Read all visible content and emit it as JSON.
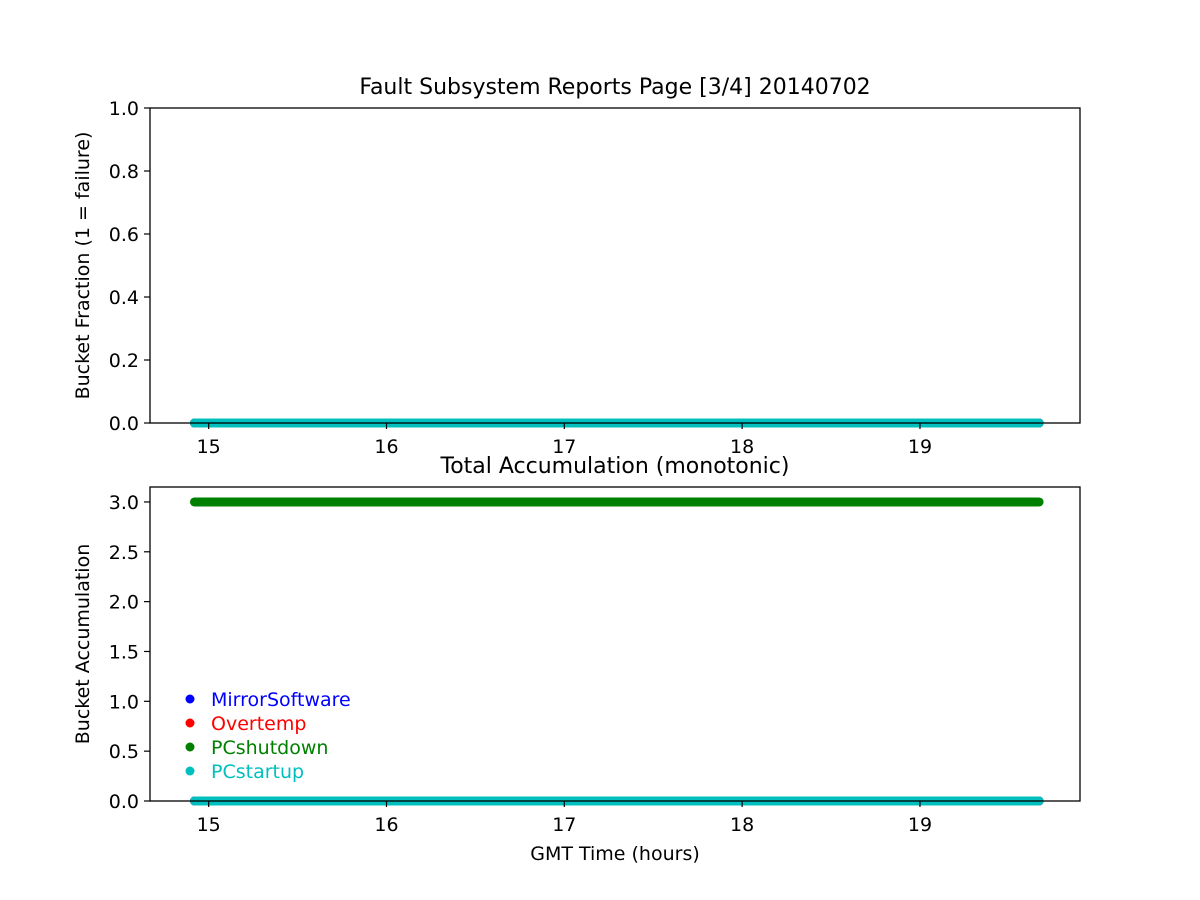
{
  "chart_data": [
    {
      "type": "scatter",
      "title": "Fault Subsystem Reports Page [3/4] 20140702",
      "xlabel": "",
      "ylabel": "Bucket Fraction (1 = failure)",
      "xlim": [
        14.67,
        19.9
      ],
      "ylim": [
        0,
        1
      ],
      "xticks": [
        15,
        16,
        17,
        18,
        19
      ],
      "xtick_labels": [
        "15",
        "16",
        "17",
        "18",
        "19"
      ],
      "yticks": [
        0,
        0.2,
        0.4,
        0.6,
        0.8,
        1.0
      ],
      "ytick_labels": [
        "0.0",
        "0.2",
        "0.4",
        "0.6",
        "0.8",
        "1.0"
      ],
      "x_range": [
        14.92,
        19.67
      ],
      "grid": false,
      "series": [
        {
          "name": "MirrorSoftware",
          "color": "#0000ff",
          "y": 0
        },
        {
          "name": "Overtemp",
          "color": "#ff0000",
          "y": 0
        },
        {
          "name": "PCshutdown",
          "color": "#008000",
          "y": 0
        },
        {
          "name": "PCstartup",
          "color": "#00bfbf",
          "y": 0
        }
      ]
    },
    {
      "type": "scatter",
      "title": "Total Accumulation (monotonic)",
      "xlabel": "GMT Time (hours)",
      "ylabel": "Bucket Accumulation",
      "xlim": [
        14.67,
        19.9
      ],
      "ylim": [
        0,
        3.15
      ],
      "xticks": [
        15,
        16,
        17,
        18,
        19
      ],
      "xtick_labels": [
        "15",
        "16",
        "17",
        "18",
        "19"
      ],
      "yticks": [
        0,
        0.5,
        1.0,
        1.5,
        2.0,
        2.5,
        3.0
      ],
      "ytick_labels": [
        "0.0",
        "0.5",
        "1.0",
        "1.5",
        "2.0",
        "2.5",
        "3.0"
      ],
      "x_range": [
        14.92,
        19.67
      ],
      "grid": false,
      "legend_placement": "lower-left",
      "series": [
        {
          "name": "MirrorSoftware",
          "color": "#0000ff",
          "y": 0
        },
        {
          "name": "Overtemp",
          "color": "#ff0000",
          "y": 0
        },
        {
          "name": "PCshutdown",
          "color": "#008000",
          "y": 3
        },
        {
          "name": "PCstartup",
          "color": "#00bfbf",
          "y": 0
        }
      ]
    }
  ]
}
